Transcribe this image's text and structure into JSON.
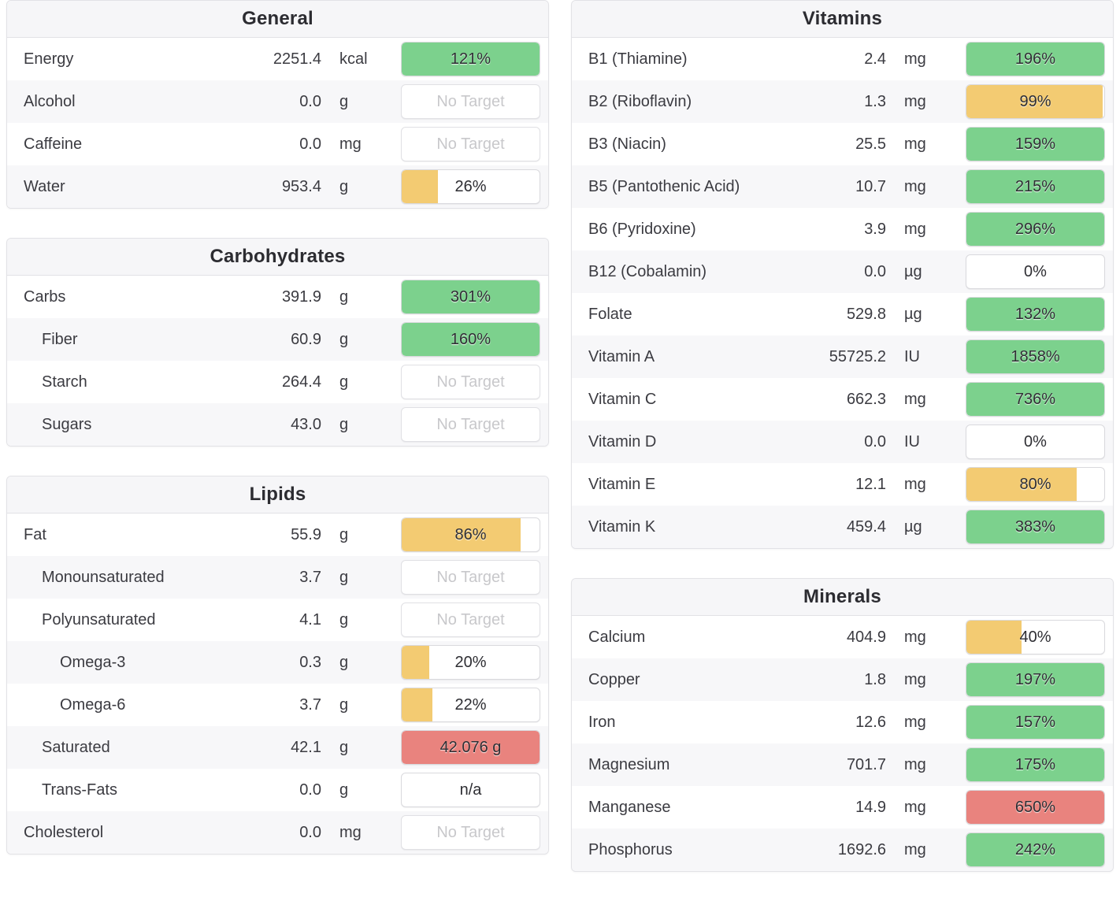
{
  "colors": {
    "green": "#7cd18d",
    "yellow": "#f3cb72",
    "red": "#e9837e"
  },
  "panels": [
    {
      "title": "General",
      "column": "left",
      "rows": [
        {
          "label": "Energy",
          "value": "2251.4",
          "unit": "kcal",
          "indent": 0,
          "bar": {
            "text": "121%",
            "pct": 121,
            "color": "green",
            "muted": false
          }
        },
        {
          "label": "Alcohol",
          "value": "0.0",
          "unit": "g",
          "indent": 0,
          "bar": {
            "text": "No Target",
            "pct": null,
            "color": "none",
            "muted": true
          }
        },
        {
          "label": "Caffeine",
          "value": "0.0",
          "unit": "mg",
          "indent": 0,
          "bar": {
            "text": "No Target",
            "pct": null,
            "color": "none",
            "muted": true
          }
        },
        {
          "label": "Water",
          "value": "953.4",
          "unit": "g",
          "indent": 0,
          "bar": {
            "text": "26%",
            "pct": 26,
            "color": "yellow",
            "muted": false
          }
        }
      ]
    },
    {
      "title": "Carbohydrates",
      "column": "left",
      "rows": [
        {
          "label": "Carbs",
          "value": "391.9",
          "unit": "g",
          "indent": 0,
          "bar": {
            "text": "301%",
            "pct": 301,
            "color": "green",
            "muted": false
          }
        },
        {
          "label": "Fiber",
          "value": "60.9",
          "unit": "g",
          "indent": 1,
          "bar": {
            "text": "160%",
            "pct": 160,
            "color": "green",
            "muted": false
          }
        },
        {
          "label": "Starch",
          "value": "264.4",
          "unit": "g",
          "indent": 1,
          "bar": {
            "text": "No Target",
            "pct": null,
            "color": "none",
            "muted": true
          }
        },
        {
          "label": "Sugars",
          "value": "43.0",
          "unit": "g",
          "indent": 1,
          "bar": {
            "text": "No Target",
            "pct": null,
            "color": "none",
            "muted": true
          }
        }
      ]
    },
    {
      "title": "Lipids",
      "column": "left",
      "rows": [
        {
          "label": "Fat",
          "value": "55.9",
          "unit": "g",
          "indent": 0,
          "bar": {
            "text": "86%",
            "pct": 86,
            "color": "yellow",
            "muted": false
          }
        },
        {
          "label": "Monounsaturated",
          "value": "3.7",
          "unit": "g",
          "indent": 1,
          "bar": {
            "text": "No Target",
            "pct": null,
            "color": "none",
            "muted": true
          }
        },
        {
          "label": "Polyunsaturated",
          "value": "4.1",
          "unit": "g",
          "indent": 1,
          "bar": {
            "text": "No Target",
            "pct": null,
            "color": "none",
            "muted": true
          }
        },
        {
          "label": "Omega-3",
          "value": "0.3",
          "unit": "g",
          "indent": 2,
          "bar": {
            "text": "20%",
            "pct": 20,
            "color": "yellow",
            "muted": false
          }
        },
        {
          "label": "Omega-6",
          "value": "3.7",
          "unit": "g",
          "indent": 2,
          "bar": {
            "text": "22%",
            "pct": 22,
            "color": "yellow",
            "muted": false
          }
        },
        {
          "label": "Saturated",
          "value": "42.1",
          "unit": "g",
          "indent": 1,
          "bar": {
            "text": "42.076 g",
            "pct": 100,
            "color": "red",
            "muted": false
          }
        },
        {
          "label": "Trans-Fats",
          "value": "0.0",
          "unit": "g",
          "indent": 1,
          "bar": {
            "text": "n/a",
            "pct": 0,
            "color": "none",
            "muted": false
          }
        },
        {
          "label": "Cholesterol",
          "value": "0.0",
          "unit": "mg",
          "indent": 0,
          "bar": {
            "text": "No Target",
            "pct": null,
            "color": "none",
            "muted": true
          }
        }
      ]
    },
    {
      "title": "Vitamins",
      "column": "right",
      "rows": [
        {
          "label": "B1 (Thiamine)",
          "value": "2.4",
          "unit": "mg",
          "indent": 0,
          "bar": {
            "text": "196%",
            "pct": 196,
            "color": "green",
            "muted": false
          }
        },
        {
          "label": "B2 (Riboflavin)",
          "value": "1.3",
          "unit": "mg",
          "indent": 0,
          "bar": {
            "text": "99%",
            "pct": 99,
            "color": "yellow",
            "muted": false
          }
        },
        {
          "label": "B3 (Niacin)",
          "value": "25.5",
          "unit": "mg",
          "indent": 0,
          "bar": {
            "text": "159%",
            "pct": 159,
            "color": "green",
            "muted": false
          }
        },
        {
          "label": "B5 (Pantothenic Acid)",
          "value": "10.7",
          "unit": "mg",
          "indent": 0,
          "bar": {
            "text": "215%",
            "pct": 215,
            "color": "green",
            "muted": false
          }
        },
        {
          "label": "B6 (Pyridoxine)",
          "value": "3.9",
          "unit": "mg",
          "indent": 0,
          "bar": {
            "text": "296%",
            "pct": 296,
            "color": "green",
            "muted": false
          }
        },
        {
          "label": "B12 (Cobalamin)",
          "value": "0.0",
          "unit": "µg",
          "indent": 0,
          "bar": {
            "text": "0%",
            "pct": 0,
            "color": "none",
            "muted": false
          }
        },
        {
          "label": "Folate",
          "value": "529.8",
          "unit": "µg",
          "indent": 0,
          "bar": {
            "text": "132%",
            "pct": 132,
            "color": "green",
            "muted": false
          }
        },
        {
          "label": "Vitamin A",
          "value": "55725.2",
          "unit": "IU",
          "indent": 0,
          "bar": {
            "text": "1858%",
            "pct": 1858,
            "color": "green",
            "muted": false
          }
        },
        {
          "label": "Vitamin C",
          "value": "662.3",
          "unit": "mg",
          "indent": 0,
          "bar": {
            "text": "736%",
            "pct": 736,
            "color": "green",
            "muted": false
          }
        },
        {
          "label": "Vitamin D",
          "value": "0.0",
          "unit": "IU",
          "indent": 0,
          "bar": {
            "text": "0%",
            "pct": 0,
            "color": "none",
            "muted": false
          }
        },
        {
          "label": "Vitamin E",
          "value": "12.1",
          "unit": "mg",
          "indent": 0,
          "bar": {
            "text": "80%",
            "pct": 80,
            "color": "yellow",
            "muted": false
          }
        },
        {
          "label": "Vitamin K",
          "value": "459.4",
          "unit": "µg",
          "indent": 0,
          "bar": {
            "text": "383%",
            "pct": 383,
            "color": "green",
            "muted": false
          }
        }
      ]
    },
    {
      "title": "Minerals",
      "column": "right",
      "rows": [
        {
          "label": "Calcium",
          "value": "404.9",
          "unit": "mg",
          "indent": 0,
          "bar": {
            "text": "40%",
            "pct": 40,
            "color": "yellow",
            "muted": false
          }
        },
        {
          "label": "Copper",
          "value": "1.8",
          "unit": "mg",
          "indent": 0,
          "bar": {
            "text": "197%",
            "pct": 197,
            "color": "green",
            "muted": false
          }
        },
        {
          "label": "Iron",
          "value": "12.6",
          "unit": "mg",
          "indent": 0,
          "bar": {
            "text": "157%",
            "pct": 157,
            "color": "green",
            "muted": false
          }
        },
        {
          "label": "Magnesium",
          "value": "701.7",
          "unit": "mg",
          "indent": 0,
          "bar": {
            "text": "175%",
            "pct": 175,
            "color": "green",
            "muted": false
          }
        },
        {
          "label": "Manganese",
          "value": "14.9",
          "unit": "mg",
          "indent": 0,
          "bar": {
            "text": "650%",
            "pct": 650,
            "color": "red",
            "muted": false
          }
        },
        {
          "label": "Phosphorus",
          "value": "1692.6",
          "unit": "mg",
          "indent": 0,
          "bar": {
            "text": "242%",
            "pct": 242,
            "color": "green",
            "muted": false
          }
        }
      ]
    }
  ]
}
